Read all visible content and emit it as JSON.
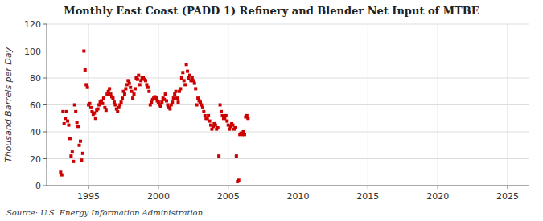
{
  "chart_data": {
    "type": "scatter",
    "title": "Monthly East Coast (PADD 1) Refinery and Blender Net Input of MTBE",
    "y_label": "Thousand Barrels per Day",
    "annotations": [
      "Source: U.S. Energy Information Administration"
    ],
    "color": "#cc0000",
    "marker": "square",
    "grid": true,
    "xlim": [
      1992.0,
      2026.5
    ],
    "ylim": [
      0,
      120
    ],
    "xticks": [
      1995,
      2000,
      2005,
      2010,
      2015,
      2020,
      2025
    ],
    "yticks": [
      0,
      20,
      40,
      60,
      80,
      100,
      120
    ],
    "x": [
      1993.0,
      1993.083,
      1993.167,
      1993.25,
      1993.333,
      1993.417,
      1993.5,
      1993.583,
      1993.667,
      1993.75,
      1993.833,
      1993.917,
      1994.0,
      1994.083,
      1994.167,
      1994.25,
      1994.333,
      1994.417,
      1994.5,
      1994.583,
      1994.667,
      1994.75,
      1994.833,
      1994.917,
      1995.0,
      1995.083,
      1995.167,
      1995.25,
      1995.333,
      1995.417,
      1995.5,
      1995.583,
      1995.667,
      1995.75,
      1995.833,
      1995.917,
      1996.0,
      1996.083,
      1996.167,
      1996.25,
      1996.333,
      1996.417,
      1996.5,
      1996.583,
      1996.667,
      1996.75,
      1996.833,
      1996.917,
      1997.0,
      1997.083,
      1997.167,
      1997.25,
      1997.333,
      1997.417,
      1997.5,
      1997.583,
      1997.667,
      1997.75,
      1997.833,
      1997.917,
      1998.0,
      1998.083,
      1998.167,
      1998.25,
      1998.333,
      1998.417,
      1998.5,
      1998.583,
      1998.667,
      1998.75,
      1998.833,
      1998.917,
      1999.0,
      1999.083,
      1999.167,
      1999.25,
      1999.333,
      1999.417,
      1999.5,
      1999.583,
      1999.667,
      1999.75,
      1999.833,
      1999.917,
      2000.0,
      2000.083,
      2000.167,
      2000.25,
      2000.333,
      2000.417,
      2000.5,
      2000.583,
      2000.667,
      2000.75,
      2000.833,
      2000.917,
      2001.0,
      2001.083,
      2001.167,
      2001.25,
      2001.333,
      2001.417,
      2001.5,
      2001.583,
      2001.667,
      2001.75,
      2001.833,
      2001.917,
      2002.0,
      2002.083,
      2002.167,
      2002.25,
      2002.333,
      2002.417,
      2002.5,
      2002.583,
      2002.667,
      2002.75,
      2002.833,
      2002.917,
      2003.0,
      2003.083,
      2003.167,
      2003.25,
      2003.333,
      2003.417,
      2003.5,
      2003.583,
      2003.667,
      2003.75,
      2003.833,
      2003.917,
      2004.0,
      2004.083,
      2004.167,
      2004.25,
      2004.333,
      2004.417,
      2004.5,
      2004.583,
      2004.667,
      2004.75,
      2004.833,
      2004.917,
      2005.0,
      2005.083,
      2005.167,
      2005.25,
      2005.333,
      2005.417,
      2005.5,
      2005.583,
      2005.667,
      2005.75,
      2005.833,
      2005.917,
      2006.0,
      2006.083,
      2006.167,
      2006.25,
      2006.333,
      2006.417
    ],
    "values": [
      10,
      8,
      55,
      46,
      50,
      55,
      48,
      45,
      35,
      22,
      25,
      18,
      60,
      55,
      47,
      44,
      30,
      33,
      19,
      24,
      100,
      86,
      75,
      73,
      60,
      61,
      58,
      55,
      53,
      54,
      50,
      56,
      57,
      60,
      62,
      63,
      61,
      65,
      58,
      56,
      68,
      70,
      72,
      68,
      66,
      65,
      62,
      60,
      57,
      55,
      58,
      60,
      62,
      65,
      70,
      68,
      72,
      75,
      78,
      76,
      73,
      70,
      65,
      68,
      72,
      80,
      79,
      82,
      75,
      78,
      80,
      80,
      79,
      78,
      75,
      73,
      70,
      60,
      62,
      64,
      65,
      66,
      65,
      63,
      62,
      60,
      59,
      62,
      65,
      64,
      68,
      63,
      60,
      58,
      57,
      60,
      62,
      65,
      68,
      70,
      65,
      62,
      70,
      72,
      80,
      84,
      78,
      75,
      90,
      85,
      80,
      82,
      78,
      80,
      78,
      76,
      72,
      60,
      65,
      63,
      62,
      60,
      58,
      55,
      52,
      50,
      50,
      52,
      48,
      45,
      42,
      44,
      46,
      45,
      42,
      43,
      22,
      60,
      55,
      52,
      50,
      50,
      52,
      48,
      45,
      42,
      44,
      46,
      45,
      42,
      43,
      22,
      3,
      4,
      38,
      39,
      38,
      40,
      38,
      51,
      52,
      50
    ]
  }
}
